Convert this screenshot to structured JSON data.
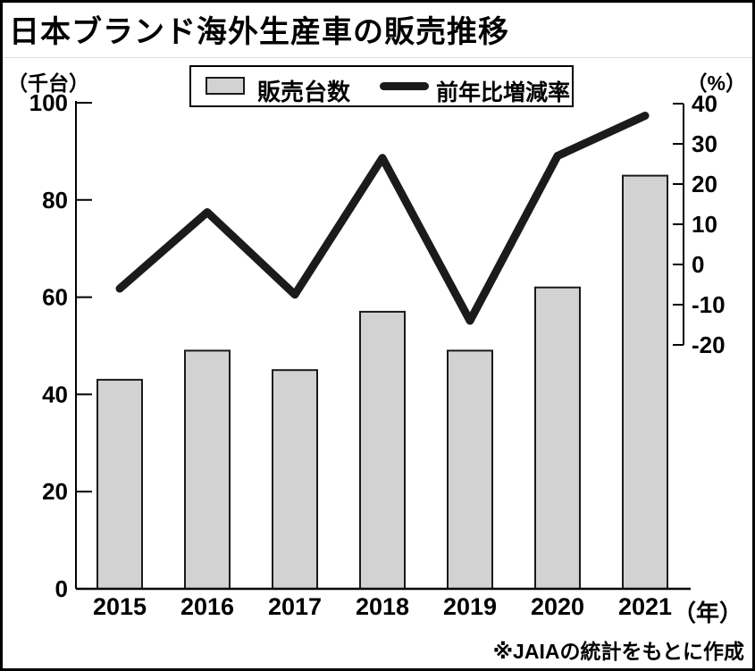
{
  "title": "日本ブランド海外生産車の販売推移",
  "left_axis_unit": "（千台）",
  "right_axis_unit": "（%）",
  "x_axis_suffix": "（年）",
  "attribution": "※JAIAの統計をもとに作成",
  "legend": {
    "bar_label": "販売台数",
    "line_label": "前年比増減率"
  },
  "colors": {
    "bar_fill": "#d2d2d2",
    "bar_stroke": "#1a1a1a",
    "line": "#1b1b1b",
    "axis": "#000000",
    "background": "#ffffff",
    "frame": "#000000"
  },
  "chart_data": {
    "type": "bar",
    "subtype": "bar-line-combo",
    "title": "日本ブランド海外生産車の販売推移",
    "categories": [
      "2015",
      "2016",
      "2017",
      "2018",
      "2019",
      "2020",
      "2021"
    ],
    "series": [
      {
        "name": "販売台数",
        "type": "bar",
        "axis": "left",
        "unit": "千台",
        "values": [
          43,
          49,
          45,
          57,
          49,
          62,
          85
        ]
      },
      {
        "name": "前年比増減率",
        "type": "line",
        "axis": "right",
        "unit": "%",
        "values": [
          -6,
          13,
          -7.5,
          26.5,
          -14,
          27,
          37
        ]
      }
    ],
    "left_axis": {
      "label": "（千台）",
      "min": 0,
      "max": 100,
      "ticks": [
        100,
        80,
        60,
        40,
        20,
        0
      ]
    },
    "right_axis": {
      "label": "（%）",
      "min": -20,
      "max": 40,
      "ticks": [
        40,
        30,
        20,
        10,
        0,
        -10,
        -20
      ]
    },
    "grid": false,
    "legend_position": "top-center",
    "source_note": "※JAIAの統計をもとに作成"
  }
}
